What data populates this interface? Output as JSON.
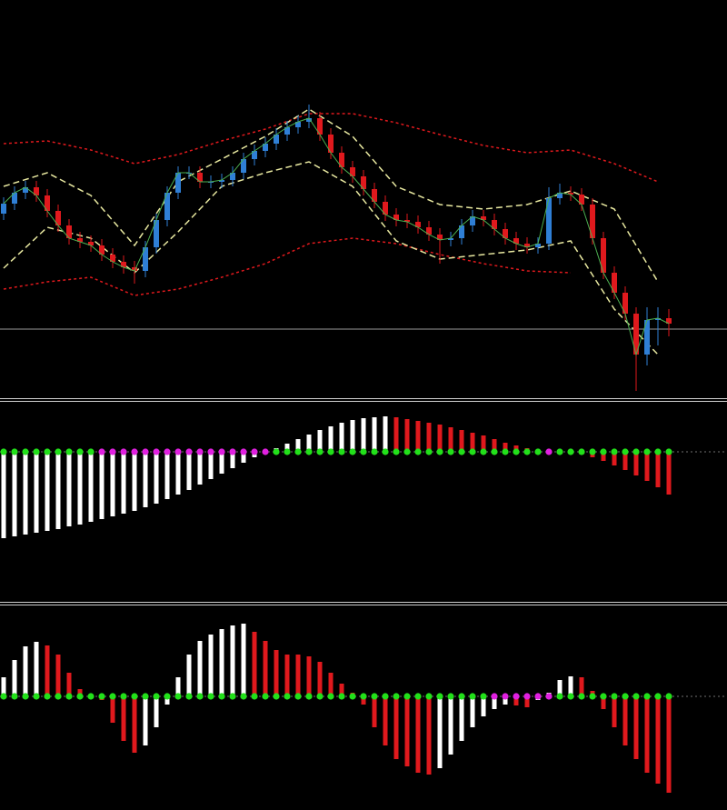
{
  "chart_data": [
    {
      "type": "candlestick",
      "ylim": [
        0,
        440
      ],
      "open": [
        205,
        216,
        228,
        234,
        225,
        208,
        192,
        178,
        174,
        170,
        160,
        152,
        146,
        142,
        168,
        198,
        228,
        250,
        250,
        240,
        240,
        242,
        250,
        265,
        274,
        282,
        292,
        300,
        306,
        310,
        292,
        272,
        256,
        246,
        232,
        218,
        204,
        198,
        196,
        190,
        182,
        176,
        178,
        192,
        202,
        198,
        188,
        178,
        172,
        168,
        172,
        222,
        228,
        226,
        215,
        178,
        140,
        118,
        95,
        50,
        88,
        90
      ],
      "high": [
        223,
        235,
        241,
        241,
        232,
        215,
        199,
        185,
        181,
        177,
        167,
        159,
        153,
        175,
        205,
        235,
        257,
        257,
        257,
        247,
        249,
        257,
        272,
        281,
        289,
        299,
        307,
        313,
        325,
        317,
        299,
        279,
        263,
        253,
        239,
        225,
        211,
        205,
        203,
        197,
        189,
        185,
        199,
        209,
        209,
        205,
        195,
        185,
        179,
        179,
        234,
        238,
        235,
        233,
        222,
        185,
        147,
        125,
        102,
        102,
        102,
        100
      ],
      "low": [
        198,
        209,
        221,
        218,
        201,
        185,
        171,
        167,
        163,
        153,
        145,
        139,
        128,
        135,
        161,
        191,
        221,
        243,
        233,
        233,
        233,
        235,
        243,
        258,
        267,
        275,
        285,
        293,
        299,
        285,
        265,
        249,
        239,
        225,
        211,
        197,
        191,
        189,
        183,
        175,
        150,
        169,
        171,
        185,
        191,
        181,
        171,
        165,
        161,
        161,
        165,
        215,
        219,
        208,
        171,
        133,
        111,
        88,
        10,
        38,
        60,
        70
      ],
      "close": [
        216,
        228,
        234,
        225,
        208,
        192,
        178,
        174,
        170,
        160,
        152,
        146,
        142,
        168,
        198,
        228,
        250,
        250,
        240,
        240,
        242,
        250,
        265,
        274,
        282,
        292,
        300,
        306,
        310,
        292,
        272,
        256,
        246,
        232,
        218,
        204,
        198,
        196,
        190,
        182,
        176,
        178,
        192,
        202,
        198,
        188,
        178,
        172,
        168,
        172,
        222,
        228,
        226,
        215,
        178,
        140,
        118,
        95,
        50,
        88,
        90,
        84
      ],
      "up_color": "#2f7fd6",
      "down_color": "#e0191d",
      "close_line_color": "#4caf50",
      "level": 78,
      "level_color": "#9a9a9a",
      "overlays": [
        {
          "color": "#e0191d",
          "style": "dotted",
          "index": [
            0,
            4,
            8,
            12,
            16,
            20,
            24,
            28,
            32,
            36,
            40,
            44,
            48,
            52,
            56,
            60
          ],
          "values": [
            282,
            285,
            275,
            260,
            270,
            285,
            298,
            315,
            315,
            305,
            292,
            280,
            272,
            275,
            260,
            240
          ]
        },
        {
          "color": "#e0191d",
          "style": "dotted",
          "index": [
            0,
            4,
            8,
            12,
            16,
            20,
            24,
            28,
            32,
            36,
            40,
            44,
            48,
            52,
            56,
            60
          ],
          "values": [
            122,
            130,
            135,
            115,
            122,
            135,
            150,
            172,
            178,
            172,
            160,
            150,
            142,
            140,
            null,
            null
          ]
        },
        {
          "color": "#e8e8a0",
          "style": "dashed",
          "index": [
            0,
            4,
            8,
            12,
            16,
            20,
            24,
            28,
            32,
            36,
            40,
            44,
            48,
            52,
            56,
            60
          ],
          "values": [
            235,
            250,
            225,
            170,
            240,
            265,
            290,
            320,
            290,
            235,
            215,
            210,
            215,
            230,
            210,
            130
          ]
        },
        {
          "color": "#e8e8a0",
          "style": "dashed",
          "index": [
            0,
            4,
            8,
            12,
            16,
            20,
            24,
            28,
            32,
            36,
            40,
            44,
            48,
            52,
            56,
            60
          ],
          "values": [
            145,
            190,
            178,
            140,
            185,
            235,
            250,
            262,
            235,
            175,
            155,
            160,
            165,
            175,
            100,
            50
          ]
        }
      ]
    },
    {
      "type": "bar",
      "ylim": [
        -163,
        55
      ],
      "values": [
        -95,
        -93,
        -91,
        -89,
        -87,
        -85,
        -82,
        -80,
        -77,
        -74,
        -71,
        -68,
        -65,
        -61,
        -57,
        -52,
        -47,
        -42,
        -36,
        -30,
        -24,
        -18,
        -12,
        -6,
        -1,
        4,
        9,
        14,
        19,
        24,
        28,
        32,
        35,
        37,
        38,
        39,
        38,
        36,
        34,
        32,
        30,
        27,
        24,
        21,
        18,
        14,
        10,
        7,
        4,
        2,
        1,
        -1,
        -2,
        -3,
        -6,
        -10,
        -15,
        -20,
        -26,
        -32,
        -39,
        -47
      ],
      "up_color": "#ffffff",
      "down_color": "#e0191d",
      "squeeze": [
        false,
        false,
        false,
        false,
        false,
        false,
        false,
        false,
        false,
        true,
        true,
        true,
        true,
        true,
        true,
        true,
        true,
        true,
        true,
        true,
        true,
        true,
        true,
        true,
        true,
        false,
        false,
        false,
        false,
        false,
        false,
        false,
        false,
        false,
        false,
        false,
        false,
        false,
        false,
        false,
        false,
        false,
        false,
        false,
        false,
        false,
        false,
        false,
        false,
        false,
        true,
        false,
        false,
        false,
        false,
        false,
        false,
        false,
        false,
        false,
        false,
        false
      ],
      "dot_on_color": "#e020e0",
      "dot_off_color": "#22e01a"
    },
    {
      "type": "bar",
      "ylim": [
        -125,
        99
      ],
      "values": [
        21,
        40,
        55,
        60,
        56,
        46,
        26,
        8,
        1,
        -4,
        -29,
        -49,
        -62,
        -54,
        -34,
        -9,
        21,
        46,
        61,
        68,
        74,
        78,
        80,
        71,
        61,
        51,
        46,
        46,
        44,
        38,
        26,
        14,
        4,
        -9,
        -34,
        -54,
        -69,
        -77,
        -84,
        -86,
        -79,
        -64,
        -49,
        -34,
        -22,
        -14,
        -9,
        -10,
        -12,
        -4,
        4,
        18,
        22,
        21,
        6,
        -14,
        -34,
        -54,
        -69,
        -84,
        -96,
        -106
      ],
      "up_color": "#ffffff",
      "down_color": "#e0191d",
      "squeeze": [
        false,
        false,
        false,
        false,
        false,
        false,
        false,
        false,
        false,
        false,
        false,
        false,
        false,
        false,
        false,
        false,
        false,
        false,
        false,
        false,
        false,
        false,
        false,
        false,
        false,
        false,
        false,
        false,
        false,
        false,
        false,
        false,
        false,
        false,
        false,
        false,
        false,
        false,
        false,
        false,
        false,
        false,
        false,
        false,
        false,
        true,
        true,
        true,
        true,
        true,
        true,
        false,
        false,
        false,
        false,
        false,
        false,
        false,
        false,
        false,
        false,
        false
      ],
      "dot_on_color": "#e020e0",
      "dot_off_color": "#22e01a"
    }
  ]
}
